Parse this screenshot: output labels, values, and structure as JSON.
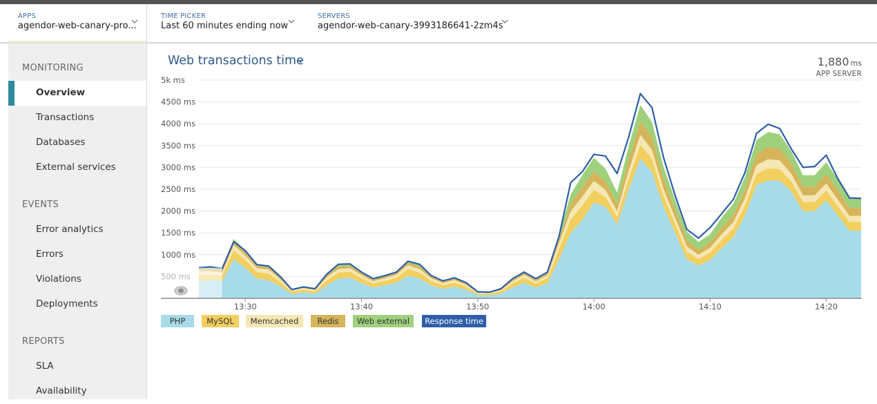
{
  "header": {
    "apps": {
      "label": "APPS",
      "value": "agendor-web-canary-pro..."
    },
    "time_picker": {
      "label": "TIME PICKER",
      "value": "Last 60 minutes ending now"
    },
    "servers": {
      "label": "SERVERS",
      "value": "agendor-web-canary-3993186641-2zm4s"
    }
  },
  "sidebar": {
    "sections": [
      {
        "title": "MONITORING",
        "items": [
          "Overview",
          "Transactions",
          "Databases",
          "External services"
        ]
      },
      {
        "title": "EVENTS",
        "items": [
          "Error analytics",
          "Errors",
          "Violations",
          "Deployments"
        ]
      },
      {
        "title": "REPORTS",
        "items": [
          "SLA",
          "Availability"
        ]
      }
    ],
    "active": "Overview"
  },
  "main": {
    "title": "Web transactions time",
    "summary_value": "1,880",
    "summary_unit": "ms",
    "summary_label": "APP SERVER"
  },
  "colors": {
    "php": "#a8dbe8",
    "mysql": "#f2cf5e",
    "memcached": "#f5e7b4",
    "redis": "#d6b45a",
    "web_external": "#9fd07c",
    "response_time": "#2d5ea8"
  },
  "chart_data": {
    "type": "area",
    "title": "Web transactions time",
    "y_tick_labels": [
      "500 ms",
      "1000 ms",
      "1500 ms",
      "2000 ms",
      "2500 ms",
      "3000 ms",
      "3500 ms",
      "4000 ms",
      "4500 ms",
      "5k ms"
    ],
    "ylim": [
      0,
      5000
    ],
    "x_tick_labels": [
      "13:30",
      "13:40",
      "13:50",
      "14:00",
      "14:10",
      "14:20"
    ],
    "x": [
      "13:26",
      "13:27",
      "13:28",
      "13:29",
      "13:30",
      "13:31",
      "13:32",
      "13:33",
      "13:34",
      "13:35",
      "13:36",
      "13:37",
      "13:38",
      "13:39",
      "13:40",
      "13:41",
      "13:42",
      "13:43",
      "13:44",
      "13:45",
      "13:46",
      "13:47",
      "13:48",
      "13:49",
      "13:50",
      "13:51",
      "13:52",
      "13:53",
      "13:54",
      "13:55",
      "13:56",
      "13:57",
      "13:58",
      "13:59",
      "14:00",
      "14:01",
      "14:02",
      "14:03",
      "14:04",
      "14:05",
      "14:06",
      "14:07",
      "14:08",
      "14:09",
      "14:10",
      "14:11",
      "14:12",
      "14:13",
      "14:14",
      "14:15",
      "14:16",
      "14:17",
      "14:18",
      "14:19",
      "14:20",
      "14:21",
      "14:22",
      "14:23"
    ],
    "series": [
      {
        "name": "PHP",
        "values": [
          400,
          420,
          400,
          900,
          700,
          450,
          420,
          280,
          100,
          140,
          110,
          300,
          450,
          480,
          350,
          250,
          300,
          360,
          520,
          460,
          300,
          220,
          270,
          200,
          80,
          70,
          110,
          250,
          360,
          250,
          350,
          900,
          1500,
          1800,
          2200,
          2100,
          1700,
          2500,
          3200,
          2900,
          2100,
          1500,
          900,
          750,
          880,
          1150,
          1400,
          1900,
          2600,
          2700,
          2700,
          2450,
          2000,
          2000,
          2250,
          1900,
          1550,
          1550
        ]
      },
      {
        "name": "MySQL",
        "values": [
          140,
          120,
          120,
          200,
          180,
          150,
          150,
          100,
          50,
          60,
          50,
          110,
          140,
          130,
          110,
          90,
          100,
          110,
          150,
          130,
          100,
          80,
          90,
          70,
          30,
          30,
          50,
          90,
          110,
          90,
          110,
          230,
          300,
          330,
          290,
          220,
          170,
          250,
          320,
          300,
          240,
          200,
          170,
          150,
          170,
          190,
          200,
          230,
          250,
          280,
          260,
          230,
          210,
          210,
          220,
          210,
          200,
          200
        ]
      },
      {
        "name": "Memcached",
        "values": [
          80,
          80,
          70,
          120,
          100,
          90,
          90,
          60,
          30,
          40,
          30,
          70,
          80,
          80,
          70,
          50,
          60,
          70,
          90,
          80,
          60,
          50,
          55,
          40,
          20,
          20,
          30,
          50,
          70,
          50,
          70,
          140,
          190,
          200,
          200,
          160,
          130,
          180,
          230,
          200,
          160,
          140,
          120,
          100,
          110,
          130,
          140,
          160,
          200,
          210,
          200,
          170,
          150,
          150,
          160,
          150,
          140,
          140
        ]
      },
      {
        "name": "Redis",
        "values": [
          60,
          60,
          50,
          80,
          70,
          60,
          60,
          40,
          20,
          25,
          20,
          45,
          55,
          55,
          45,
          35,
          40,
          45,
          60,
          55,
          40,
          35,
          40,
          30,
          15,
          15,
          20,
          35,
          45,
          35,
          45,
          90,
          170,
          220,
          220,
          200,
          170,
          250,
          300,
          290,
          230,
          180,
          140,
          110,
          120,
          150,
          170,
          200,
          260,
          280,
          270,
          230,
          200,
          200,
          220,
          210,
          180,
          180
        ]
      },
      {
        "name": "Web external",
        "values": [
          40,
          40,
          40,
          60,
          50,
          40,
          40,
          30,
          15,
          20,
          15,
          35,
          45,
          45,
          35,
          30,
          30,
          35,
          50,
          45,
          35,
          25,
          30,
          25,
          10,
          10,
          15,
          30,
          40,
          30,
          40,
          100,
          220,
          270,
          310,
          290,
          250,
          320,
          380,
          350,
          280,
          230,
          200,
          180,
          190,
          230,
          260,
          290,
          320,
          340,
          330,
          290,
          260,
          260,
          270,
          250,
          220,
          220
        ]
      },
      {
        "name": "Response time",
        "values": [
          700,
          720,
          680,
          1300,
          1090,
          770,
          740,
          500,
          200,
          260,
          220,
          550,
          780,
          790,
          600,
          450,
          520,
          600,
          850,
          780,
          520,
          400,
          470,
          360,
          150,
          140,
          220,
          450,
          600,
          450,
          600,
          1420,
          2650,
          2900,
          3300,
          3260,
          2860,
          3700,
          4690,
          4370,
          3220,
          2350,
          1580,
          1380,
          1620,
          1940,
          2270,
          2880,
          3780,
          3990,
          3890,
          3420,
          3000,
          3020,
          3280,
          2740,
          2300,
          2290
        ]
      }
    ]
  },
  "legend": [
    "PHP",
    "MySQL",
    "Memcached",
    "Redis",
    "Web external",
    "Response time"
  ]
}
